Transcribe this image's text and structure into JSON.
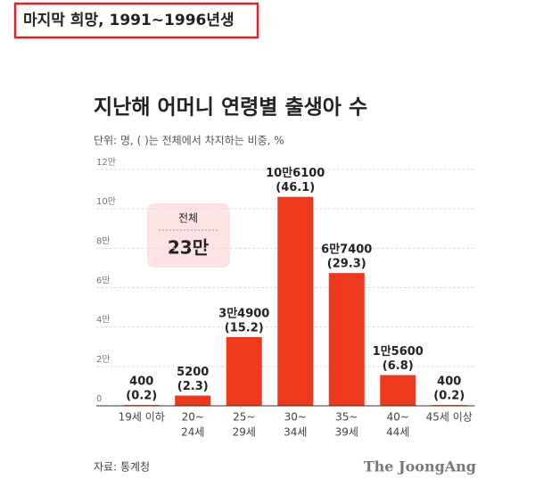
{
  "header": {
    "title": "마지막 희망, 1991~1996년생"
  },
  "chart_data": {
    "type": "bar",
    "title": "지난해 어머니 연령별 출생아 수",
    "subtitle": "단위: 명, ( )는 전체에서 차지하는 비중, %",
    "categories": [
      [
        "19세 이하"
      ],
      [
        "20~",
        "24세"
      ],
      [
        "25~",
        "29세"
      ],
      [
        "30~",
        "34세"
      ],
      [
        "35~",
        "39세"
      ],
      [
        "40~",
        "44세"
      ],
      [
        "45세 이상"
      ]
    ],
    "values": [
      400,
      5200,
      34900,
      106100,
      67400,
      15600,
      400
    ],
    "value_labels": [
      "400",
      "5200",
      "3만4900",
      "10만6100",
      "6만7400",
      "1만5600",
      "400"
    ],
    "share_labels": [
      "(0.2)",
      "(2.3)",
      "(15.2)",
      "(46.1)",
      "(29.3)",
      "(6.8)",
      "(0.2)"
    ],
    "color": "#ee3a1c",
    "ylim": [
      0,
      120000
    ],
    "yticks": [
      0,
      {
        "value": 20000,
        "label": "2만"
      },
      {
        "value": 40000,
        "label": "4만"
      },
      {
        "value": 60000,
        "label": "6만"
      },
      {
        "value": 80000,
        "label": "8만"
      },
      {
        "value": 100000,
        "label": "10만"
      },
      {
        "value": 120000,
        "label": "12만"
      }
    ],
    "grid": true,
    "annotation": {
      "label": "전체",
      "value_label": "23만"
    },
    "source": "자료: 통계청",
    "logo": "The JoongAng"
  }
}
